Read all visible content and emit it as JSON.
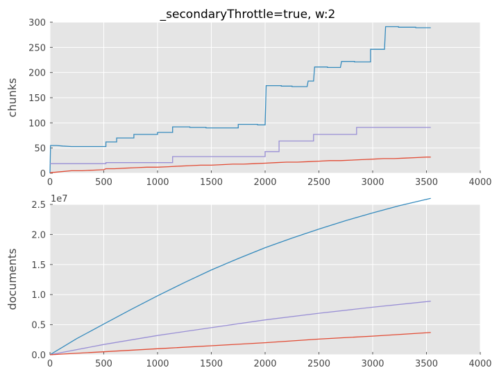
{
  "chart_data": [
    {
      "type": "line",
      "title": "_secondaryThrottle=true, w:2",
      "xlabel": "",
      "ylabel": "chunks",
      "xlim": [
        0,
        4000
      ],
      "ylim": [
        0,
        300
      ],
      "xticks": [
        "0",
        "500",
        "1000",
        "1500",
        "2000",
        "2500",
        "3000",
        "3500",
        "4000"
      ],
      "yticks": [
        "0",
        "50",
        "100",
        "150",
        "200",
        "250",
        "300"
      ],
      "offset_text": "",
      "grid": true,
      "series": [
        {
          "color": "#348abd",
          "points": [
            [
              0,
              0
            ],
            [
              5,
              55
            ],
            [
              60,
              55
            ],
            [
              120,
              54
            ],
            [
              200,
              53
            ],
            [
              520,
              53
            ],
            [
              520,
              62
            ],
            [
              620,
              62
            ],
            [
              620,
              70
            ],
            [
              780,
              70
            ],
            [
              780,
              77
            ],
            [
              1000,
              77
            ],
            [
              1000,
              81
            ],
            [
              1140,
              81
            ],
            [
              1140,
              92
            ],
            [
              1300,
              92
            ],
            [
              1300,
              91
            ],
            [
              1450,
              91
            ],
            [
              1450,
              90
            ],
            [
              1750,
              90
            ],
            [
              1750,
              97
            ],
            [
              1930,
              97
            ],
            [
              1930,
              96
            ],
            [
              2000,
              96
            ],
            [
              2010,
              174
            ],
            [
              2150,
              174
            ],
            [
              2150,
              173
            ],
            [
              2250,
              173
            ],
            [
              2250,
              172
            ],
            [
              2390,
              172
            ],
            [
              2400,
              183
            ],
            [
              2450,
              183
            ],
            [
              2460,
              211
            ],
            [
              2580,
              211
            ],
            [
              2580,
              210
            ],
            [
              2700,
              210
            ],
            [
              2710,
              222
            ],
            [
              2830,
              222
            ],
            [
              2830,
              221
            ],
            [
              2980,
              221
            ],
            [
              2980,
              246
            ],
            [
              3110,
              246
            ],
            [
              3120,
              291
            ],
            [
              3240,
              291
            ],
            [
              3240,
              290
            ],
            [
              3400,
              290
            ],
            [
              3400,
              289
            ],
            [
              3540,
              289
            ]
          ]
        },
        {
          "color": "#988ed5",
          "points": [
            [
              0,
              19
            ],
            [
              520,
              19
            ],
            [
              520,
              21
            ],
            [
              1140,
              21
            ],
            [
              1140,
              33
            ],
            [
              2000,
              33
            ],
            [
              2000,
              43
            ],
            [
              2130,
              43
            ],
            [
              2130,
              64
            ],
            [
              2450,
              64
            ],
            [
              2450,
              77
            ],
            [
              2850,
              77
            ],
            [
              2850,
              91
            ],
            [
              3540,
              91
            ]
          ]
        },
        {
          "color": "#e24a33",
          "points": [
            [
              0,
              1
            ],
            [
              100,
              3
            ],
            [
              200,
              5
            ],
            [
              300,
              5
            ],
            [
              400,
              6
            ],
            [
              500,
              7
            ],
            [
              520,
              9
            ],
            [
              600,
              9
            ],
            [
              700,
              10
            ],
            [
              800,
              11
            ],
            [
              900,
              12
            ],
            [
              1000,
              12
            ],
            [
              1100,
              13
            ],
            [
              1200,
              14
            ],
            [
              1300,
              15
            ],
            [
              1400,
              16
            ],
            [
              1500,
              16
            ],
            [
              1600,
              17
            ],
            [
              1700,
              18
            ],
            [
              1800,
              18
            ],
            [
              1900,
              19
            ],
            [
              2000,
              20
            ],
            [
              2100,
              21
            ],
            [
              2200,
              22
            ],
            [
              2300,
              22
            ],
            [
              2400,
              23
            ],
            [
              2500,
              24
            ],
            [
              2600,
              25
            ],
            [
              2700,
              25
            ],
            [
              2800,
              26
            ],
            [
              2900,
              27
            ],
            [
              3000,
              28
            ],
            [
              3100,
              29
            ],
            [
              3200,
              29
            ],
            [
              3300,
              30
            ],
            [
              3400,
              31
            ],
            [
              3500,
              32
            ],
            [
              3540,
              32
            ]
          ]
        }
      ]
    },
    {
      "type": "line",
      "title": "",
      "xlabel": "",
      "ylabel": "documents",
      "xlim": [
        0,
        4000
      ],
      "ylim": [
        0,
        2.5
      ],
      "xticks": [
        "0",
        "500",
        "1000",
        "1500",
        "2000",
        "2500",
        "3000",
        "3500",
        "4000"
      ],
      "yticks": [
        "0.0",
        "0.5",
        "1.0",
        "1.5",
        "2.0",
        "2.5"
      ],
      "offset_text": "1e7",
      "grid": true,
      "series": [
        {
          "color": "#348abd",
          "points": [
            [
              0,
              0
            ],
            [
              250,
              0.27
            ],
            [
              500,
              0.51
            ],
            [
              750,
              0.75
            ],
            [
              1000,
              0.98
            ],
            [
              1250,
              1.2
            ],
            [
              1500,
              1.41
            ],
            [
              1750,
              1.6
            ],
            [
              2000,
              1.78
            ],
            [
              2250,
              1.94
            ],
            [
              2500,
              2.09
            ],
            [
              2750,
              2.23
            ],
            [
              3000,
              2.36
            ],
            [
              3250,
              2.48
            ],
            [
              3540,
              2.6
            ]
          ]
        },
        {
          "color": "#988ed5",
          "points": [
            [
              0,
              0
            ],
            [
              500,
              0.17
            ],
            [
              1000,
              0.32
            ],
            [
              1500,
              0.45
            ],
            [
              2000,
              0.58
            ],
            [
              2500,
              0.69
            ],
            [
              3000,
              0.79
            ],
            [
              3540,
              0.89
            ]
          ]
        },
        {
          "color": "#e24a33",
          "points": [
            [
              0,
              0
            ],
            [
              500,
              0.05
            ],
            [
              1000,
              0.1
            ],
            [
              1500,
              0.15
            ],
            [
              2000,
              0.2
            ],
            [
              2500,
              0.26
            ],
            [
              3000,
              0.31
            ],
            [
              3540,
              0.37
            ]
          ]
        }
      ]
    }
  ]
}
